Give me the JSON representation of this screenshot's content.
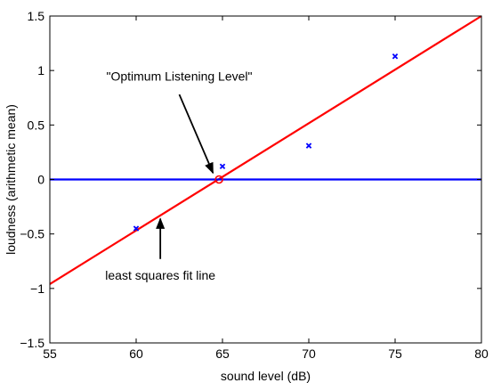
{
  "chart_data": {
    "type": "scatter",
    "title": "",
    "xlabel": "sound level (dB)",
    "ylabel": "loudness (arithmetic mean)",
    "xlim": [
      55,
      80
    ],
    "ylim": [
      -1.5,
      1.5
    ],
    "xticks": [
      55,
      60,
      65,
      70,
      75,
      80
    ],
    "yticks": [
      -1.5,
      -1,
      -0.5,
      0,
      0.5,
      1,
      1.5
    ],
    "xtick_labels": [
      "55",
      "60",
      "65",
      "70",
      "75",
      "80"
    ],
    "ytick_labels": [
      "−1.5",
      "−1",
      "−0.5",
      "0",
      "0.5",
      "1",
      "1.5"
    ],
    "grid": false,
    "series": [
      {
        "marker": "x",
        "color": "#0000ff",
        "points": [
          {
            "x": 60,
            "y": -0.45
          },
          {
            "x": 65,
            "y": 0.12
          },
          {
            "x": 70,
            "y": 0.31
          },
          {
            "x": 75,
            "y": 1.13
          }
        ]
      }
    ],
    "lines": [
      {
        "kind": "fit",
        "color": "#ff0000",
        "x": [
          55,
          80
        ],
        "y": [
          -0.96,
          1.5
        ]
      },
      {
        "kind": "zero",
        "color": "#0000ff",
        "x": [
          55,
          80
        ],
        "y": [
          0,
          0
        ]
      }
    ],
    "optimum_point": {
      "x": 64.8,
      "y": 0,
      "color": "#ff0000",
      "edge_color": "#0000ff"
    },
    "annotations": [
      {
        "text": "\"Optimum Listening Level\"",
        "text_x": 62.5,
        "text_y": 0.95,
        "arrow_from": [
          62.5,
          0.78
        ],
        "arrow_to": [
          64.45,
          0.06
        ]
      },
      {
        "text": "least squares fit line",
        "text_x": 61.4,
        "text_y": -0.88,
        "arrow_from": [
          61.4,
          -0.73
        ],
        "arrow_to": [
          61.4,
          -0.36
        ]
      }
    ]
  }
}
